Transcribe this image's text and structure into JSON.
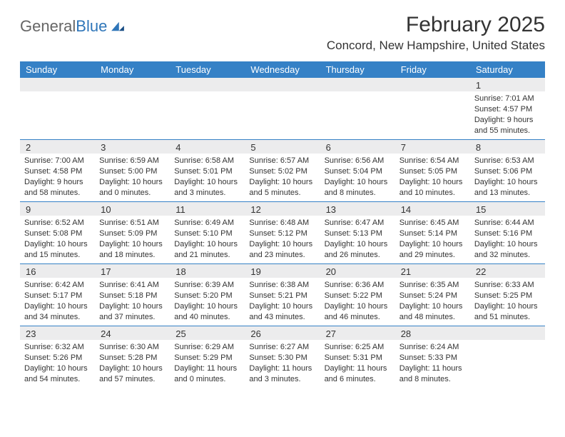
{
  "logo": {
    "text1": "General",
    "text2": "Blue"
  },
  "title": "February 2025",
  "location": "Concord, New Hampshire, United States",
  "header_bg": "#3581c6",
  "header_text_color": "#ffffff",
  "date_row_bg": "#ececed",
  "border_color": "#3581c6",
  "day_names": [
    "Sunday",
    "Monday",
    "Tuesday",
    "Wednesday",
    "Thursday",
    "Friday",
    "Saturday"
  ],
  "weeks": [
    [
      {
        "date": "",
        "lines": []
      },
      {
        "date": "",
        "lines": []
      },
      {
        "date": "",
        "lines": []
      },
      {
        "date": "",
        "lines": []
      },
      {
        "date": "",
        "lines": []
      },
      {
        "date": "",
        "lines": []
      },
      {
        "date": "1",
        "lines": [
          "Sunrise: 7:01 AM",
          "Sunset: 4:57 PM",
          "Daylight: 9 hours and 55 minutes."
        ]
      }
    ],
    [
      {
        "date": "2",
        "lines": [
          "Sunrise: 7:00 AM",
          "Sunset: 4:58 PM",
          "Daylight: 9 hours and 58 minutes."
        ]
      },
      {
        "date": "3",
        "lines": [
          "Sunrise: 6:59 AM",
          "Sunset: 5:00 PM",
          "Daylight: 10 hours and 0 minutes."
        ]
      },
      {
        "date": "4",
        "lines": [
          "Sunrise: 6:58 AM",
          "Sunset: 5:01 PM",
          "Daylight: 10 hours and 3 minutes."
        ]
      },
      {
        "date": "5",
        "lines": [
          "Sunrise: 6:57 AM",
          "Sunset: 5:02 PM",
          "Daylight: 10 hours and 5 minutes."
        ]
      },
      {
        "date": "6",
        "lines": [
          "Sunrise: 6:56 AM",
          "Sunset: 5:04 PM",
          "Daylight: 10 hours and 8 minutes."
        ]
      },
      {
        "date": "7",
        "lines": [
          "Sunrise: 6:54 AM",
          "Sunset: 5:05 PM",
          "Daylight: 10 hours and 10 minutes."
        ]
      },
      {
        "date": "8",
        "lines": [
          "Sunrise: 6:53 AM",
          "Sunset: 5:06 PM",
          "Daylight: 10 hours and 13 minutes."
        ]
      }
    ],
    [
      {
        "date": "9",
        "lines": [
          "Sunrise: 6:52 AM",
          "Sunset: 5:08 PM",
          "Daylight: 10 hours and 15 minutes."
        ]
      },
      {
        "date": "10",
        "lines": [
          "Sunrise: 6:51 AM",
          "Sunset: 5:09 PM",
          "Daylight: 10 hours and 18 minutes."
        ]
      },
      {
        "date": "11",
        "lines": [
          "Sunrise: 6:49 AM",
          "Sunset: 5:10 PM",
          "Daylight: 10 hours and 21 minutes."
        ]
      },
      {
        "date": "12",
        "lines": [
          "Sunrise: 6:48 AM",
          "Sunset: 5:12 PM",
          "Daylight: 10 hours and 23 minutes."
        ]
      },
      {
        "date": "13",
        "lines": [
          "Sunrise: 6:47 AM",
          "Sunset: 5:13 PM",
          "Daylight: 10 hours and 26 minutes."
        ]
      },
      {
        "date": "14",
        "lines": [
          "Sunrise: 6:45 AM",
          "Sunset: 5:14 PM",
          "Daylight: 10 hours and 29 minutes."
        ]
      },
      {
        "date": "15",
        "lines": [
          "Sunrise: 6:44 AM",
          "Sunset: 5:16 PM",
          "Daylight: 10 hours and 32 minutes."
        ]
      }
    ],
    [
      {
        "date": "16",
        "lines": [
          "Sunrise: 6:42 AM",
          "Sunset: 5:17 PM",
          "Daylight: 10 hours and 34 minutes."
        ]
      },
      {
        "date": "17",
        "lines": [
          "Sunrise: 6:41 AM",
          "Sunset: 5:18 PM",
          "Daylight: 10 hours and 37 minutes."
        ]
      },
      {
        "date": "18",
        "lines": [
          "Sunrise: 6:39 AM",
          "Sunset: 5:20 PM",
          "Daylight: 10 hours and 40 minutes."
        ]
      },
      {
        "date": "19",
        "lines": [
          "Sunrise: 6:38 AM",
          "Sunset: 5:21 PM",
          "Daylight: 10 hours and 43 minutes."
        ]
      },
      {
        "date": "20",
        "lines": [
          "Sunrise: 6:36 AM",
          "Sunset: 5:22 PM",
          "Daylight: 10 hours and 46 minutes."
        ]
      },
      {
        "date": "21",
        "lines": [
          "Sunrise: 6:35 AM",
          "Sunset: 5:24 PM",
          "Daylight: 10 hours and 48 minutes."
        ]
      },
      {
        "date": "22",
        "lines": [
          "Sunrise: 6:33 AM",
          "Sunset: 5:25 PM",
          "Daylight: 10 hours and 51 minutes."
        ]
      }
    ],
    [
      {
        "date": "23",
        "lines": [
          "Sunrise: 6:32 AM",
          "Sunset: 5:26 PM",
          "Daylight: 10 hours and 54 minutes."
        ]
      },
      {
        "date": "24",
        "lines": [
          "Sunrise: 6:30 AM",
          "Sunset: 5:28 PM",
          "Daylight: 10 hours and 57 minutes."
        ]
      },
      {
        "date": "25",
        "lines": [
          "Sunrise: 6:29 AM",
          "Sunset: 5:29 PM",
          "Daylight: 11 hours and 0 minutes."
        ]
      },
      {
        "date": "26",
        "lines": [
          "Sunrise: 6:27 AM",
          "Sunset: 5:30 PM",
          "Daylight: 11 hours and 3 minutes."
        ]
      },
      {
        "date": "27",
        "lines": [
          "Sunrise: 6:25 AM",
          "Sunset: 5:31 PM",
          "Daylight: 11 hours and 6 minutes."
        ]
      },
      {
        "date": "28",
        "lines": [
          "Sunrise: 6:24 AM",
          "Sunset: 5:33 PM",
          "Daylight: 11 hours and 8 minutes."
        ]
      },
      {
        "date": "",
        "lines": []
      }
    ]
  ]
}
